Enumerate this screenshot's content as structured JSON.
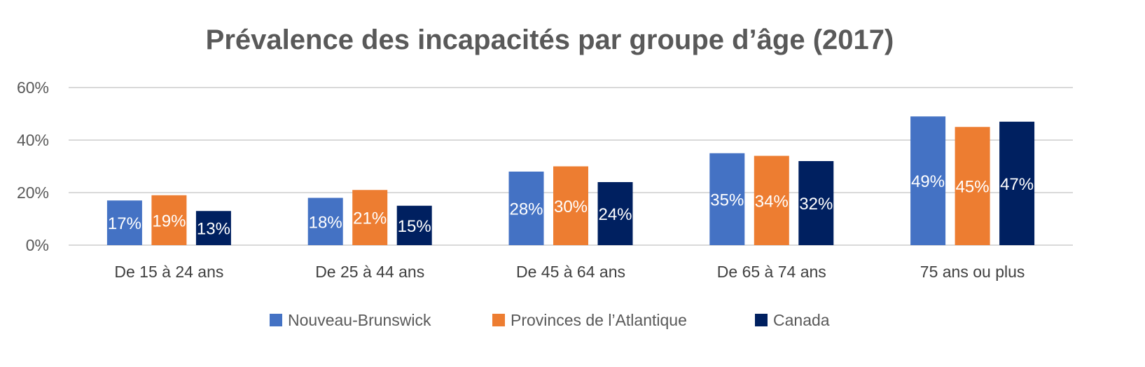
{
  "chart_data": {
    "type": "bar",
    "title": "Prévalence des incapacités par groupe d’âge (2017)",
    "xlabel": "",
    "ylabel": "",
    "ylim": [
      0,
      60
    ],
    "yticks": [
      "0%",
      "20%",
      "40%",
      "60%"
    ],
    "ytick_values": [
      0,
      20,
      40,
      60
    ],
    "grid": true,
    "legend_position": "bottom",
    "categories": [
      "De 15 à 24 ans",
      "De 25 à 44 ans",
      "De 45 à 64 ans",
      "De 65 à 74 ans",
      "75 ans ou plus"
    ],
    "series": [
      {
        "name": "Nouveau-Brunswick",
        "color": "#4472C4",
        "values": [
          17,
          18,
          28,
          35,
          49
        ],
        "labels": [
          "17%",
          "18%",
          "28%",
          "35%",
          "49%"
        ]
      },
      {
        "name": "Provinces de l’Atlantique",
        "color": "#ED7D31",
        "values": [
          19,
          21,
          30,
          34,
          45
        ],
        "labels": [
          "19%",
          "21%",
          "30%",
          "34%",
          "45%"
        ]
      },
      {
        "name": "Canada",
        "color": "#002060",
        "values": [
          13,
          15,
          24,
          32,
          47
        ],
        "labels": [
          "13%",
          "15%",
          "24%",
          "32%",
          "47%"
        ]
      }
    ]
  }
}
